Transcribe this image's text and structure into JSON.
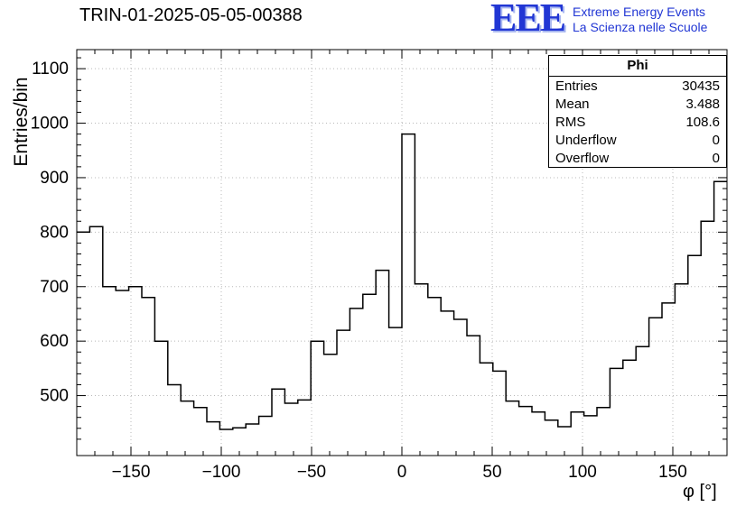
{
  "header": {
    "title": "TRIN-01-2025-05-05-00388",
    "logo": {
      "text": "EEE",
      "line1": "Extreme Energy Events",
      "line2": "La Scienza nelle Scuole",
      "color": "#2136d4"
    }
  },
  "stats": {
    "name": "Phi",
    "rows": [
      {
        "label": "Entries",
        "value": "30435"
      },
      {
        "label": "Mean",
        "value": "3.488"
      },
      {
        "label": "RMS",
        "value": "108.6"
      },
      {
        "label": "Underflow",
        "value": "0"
      },
      {
        "label": "Overflow",
        "value": "0"
      }
    ]
  },
  "chart_data": {
    "type": "bar",
    "subtype": "step-histogram",
    "title": "TRIN-01-2025-05-05-00388",
    "xlabel": "φ [°]",
    "ylabel": "Entries/bin",
    "xlim": [
      -180,
      180
    ],
    "ylim": [
      390,
      1135
    ],
    "x_ticks": [
      -150,
      -100,
      -50,
      0,
      50,
      100,
      150
    ],
    "y_ticks": [
      500,
      600,
      700,
      800,
      900,
      1000,
      1100
    ],
    "x_minor_step": 10,
    "y_minor_step": 20,
    "grid": true,
    "grid_color": "#b8b8b8",
    "line_color": "#000000",
    "bin_start": -180,
    "bin_width": 7.2,
    "values": [
      800,
      810,
      700,
      693,
      700,
      680,
      600,
      520,
      490,
      478,
      452,
      438,
      441,
      448,
      462,
      512,
      486,
      492,
      600,
      576,
      620,
      660,
      686,
      730,
      625,
      980,
      705,
      680,
      655,
      640,
      610,
      560,
      545,
      490,
      480,
      470,
      455,
      443,
      470,
      463,
      478,
      550,
      565,
      590,
      643,
      670,
      705,
      757,
      820,
      893
    ]
  }
}
